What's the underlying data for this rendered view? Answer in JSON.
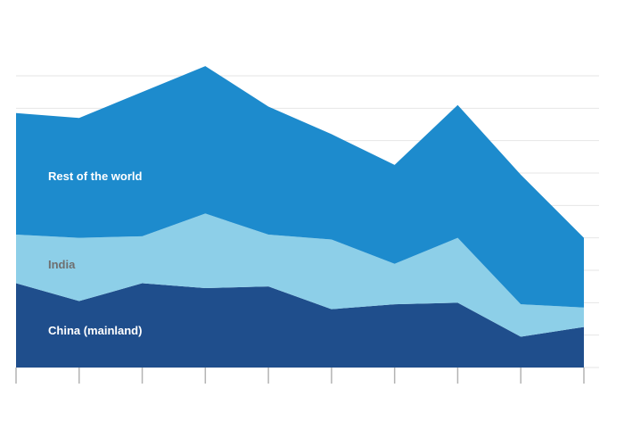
{
  "chart_data": {
    "type": "area",
    "stacked": true,
    "subtitle": "",
    "source": "",
    "x": [
      0,
      1,
      2,
      3,
      4,
      5,
      6,
      7,
      8,
      9
    ],
    "x_tick_labels": [
      "",
      "",
      "",
      "",
      "",
      "",
      "",
      "",
      "",
      ""
    ],
    "y_tick_labels": [
      "",
      "",
      "",
      "",
      "",
      "",
      "",
      "",
      "",
      ""
    ],
    "ylim": [
      0,
      9
    ],
    "grid": true,
    "series": [
      {
        "name": "China (mainland)",
        "color": "#1f4e8c",
        "label_color": "#ffffff",
        "values": [
          2.6,
          2.05,
          2.6,
          2.45,
          2.5,
          1.8,
          1.95,
          2.0,
          0.95,
          1.25
        ]
      },
      {
        "name": "India",
        "color": "#8dcfe8",
        "label_color": "#6f6f6f",
        "values": [
          1.5,
          1.95,
          1.45,
          2.3,
          1.6,
          2.15,
          1.25,
          2.0,
          1.0,
          0.6
        ]
      },
      {
        "name": "Rest of the world",
        "color": "#1d8bcd",
        "label_color": "#ffffff",
        "values": [
          3.75,
          3.7,
          4.45,
          4.55,
          3.95,
          3.25,
          3.05,
          4.1,
          4.0,
          2.15
        ]
      }
    ]
  }
}
